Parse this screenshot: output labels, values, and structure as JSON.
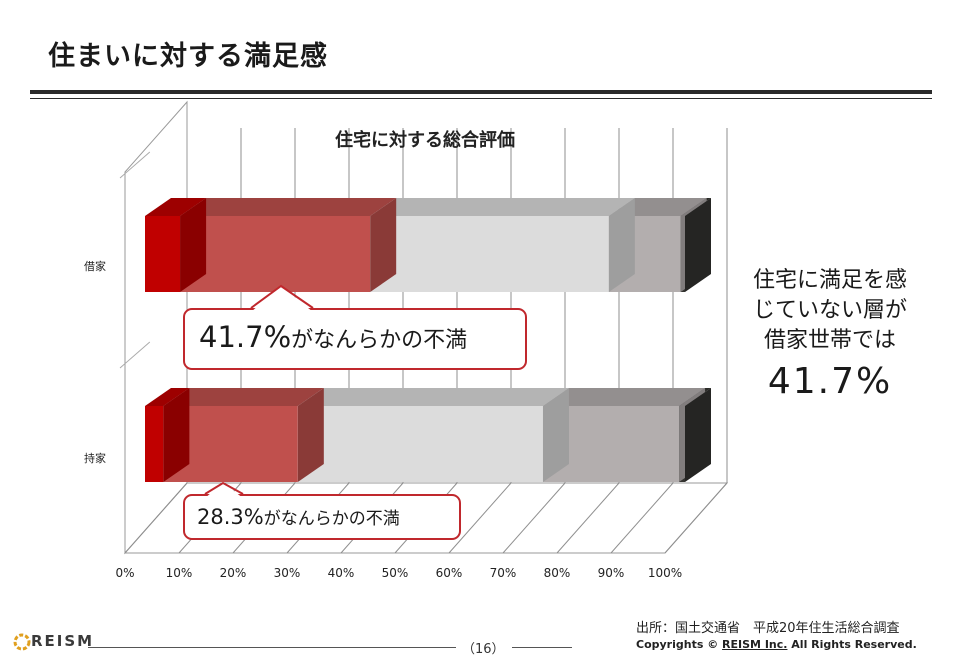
{
  "slide": {
    "title": "住まいに対する満足感",
    "callout_rent": {
      "value": "41.7%",
      "text": "がなんらかの不満"
    },
    "callout_own": {
      "value": "28.3%",
      "text": "がなんらかの不満"
    },
    "side_note": {
      "line1": "住宅に満足を感",
      "line2": "じていない層が",
      "line3": "借家世帯では",
      "value": "41.7%"
    },
    "footer": {
      "logo": "REISM",
      "page": "（16）",
      "source": "出所：国土交通省　平成20年住生活総合調査",
      "copyright_prefix": "Copyrights © ",
      "copyright_company": "REISM Inc.",
      "copyright_suffix": " All Rights Reserved."
    }
  },
  "chart_data": {
    "type": "bar",
    "orientation": "horizontal",
    "stacked": "100%",
    "three_d": true,
    "title": "住宅に対する総合評価",
    "categories": [
      "借家",
      "持家"
    ],
    "series": [
      {
        "values": [
          6.5,
          3.4
        ],
        "color": "#c00000"
      },
      {
        "values": [
          35.2,
          24.9
        ],
        "color": "#c0504d"
      },
      {
        "values": [
          44.2,
          45.4
        ],
        "color": "#dcdcdc"
      },
      {
        "values": [
          13.3,
          25.2
        ],
        "color": "#b3aeae"
      },
      {
        "values": [
          0.8,
          1.1
        ],
        "color": "#333330"
      }
    ],
    "x_ticks": [
      "0%",
      "10%",
      "20%",
      "30%",
      "40%",
      "50%",
      "60%",
      "70%",
      "80%",
      "90%",
      "100%"
    ],
    "xlim": [
      0,
      100
    ],
    "grid": true,
    "legend": "none"
  }
}
